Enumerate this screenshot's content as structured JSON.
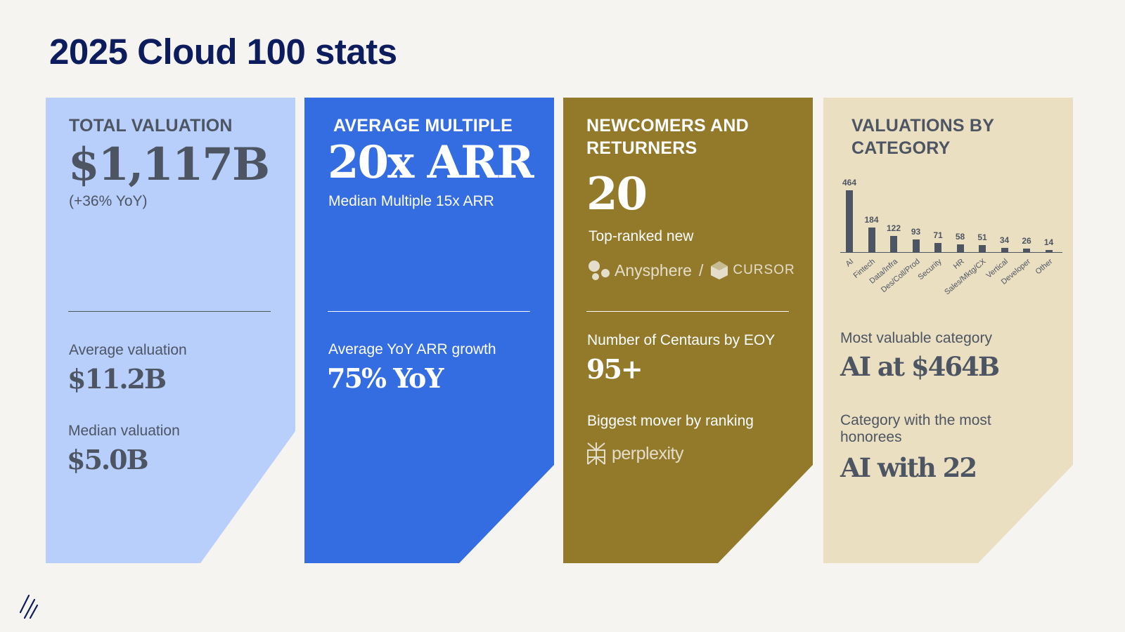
{
  "title": "2025 Cloud 100 stats",
  "cards": {
    "total": {
      "heading": "TOTAL VALUATION",
      "value": "$1,117B",
      "change": "(+36% YoY)",
      "avg_label": "Average valuation",
      "avg_value": "$11.2B",
      "median_label": "Median valuation",
      "median_value": "$5.0B"
    },
    "multiple": {
      "heading": "AVERAGE MULTIPLE",
      "value": "20x ARR",
      "sub": "Median Multiple 15x ARR",
      "growth_label": "Average YoY ARR growth",
      "growth_value": "75% YoY"
    },
    "newcomers": {
      "heading_line1": "NEWCOMERS AND",
      "heading_line2": "RETURNERS",
      "value": "20",
      "top_ranked_label": "Top-ranked new",
      "company": "Anysphere",
      "separator": "/",
      "product": "CURSOR",
      "centaurs_label": "Number of Centaurs by EOY",
      "centaurs_value": "95+",
      "mover_label": "Biggest mover by ranking",
      "mover_name": "perplexity"
    },
    "category": {
      "heading_line1": "VALUATIONS BY",
      "heading_line2": "CATEGORY",
      "most_valuable_label": "Most valuable category",
      "most_valuable_value": "AI at $464B",
      "most_honorees_label_line1": "Category with the most",
      "most_honorees_label_line2": "honorees",
      "most_honorees_value": "AI with 22"
    }
  },
  "chart_data": {
    "type": "bar",
    "categories": [
      "AI",
      "Fintech",
      "Data/Infra",
      "Des/Coll/Prod",
      "Security",
      "HR",
      "Sales/Mktg/CX",
      "Vertical",
      "Developer",
      "Other"
    ],
    "values": [
      464,
      184,
      122,
      93,
      71,
      58,
      51,
      34,
      26,
      14
    ],
    "title": "",
    "xlabel": "",
    "ylabel": "",
    "ylim": [
      0,
      464
    ],
    "bar_color": "#4d5563"
  },
  "colors": {
    "title": "#0d1c5c",
    "card1": "#b8cefb",
    "card2": "#346ce2",
    "card3": "#937a2b",
    "card4": "#ebdfc2",
    "dark_text": "#4d5563"
  }
}
